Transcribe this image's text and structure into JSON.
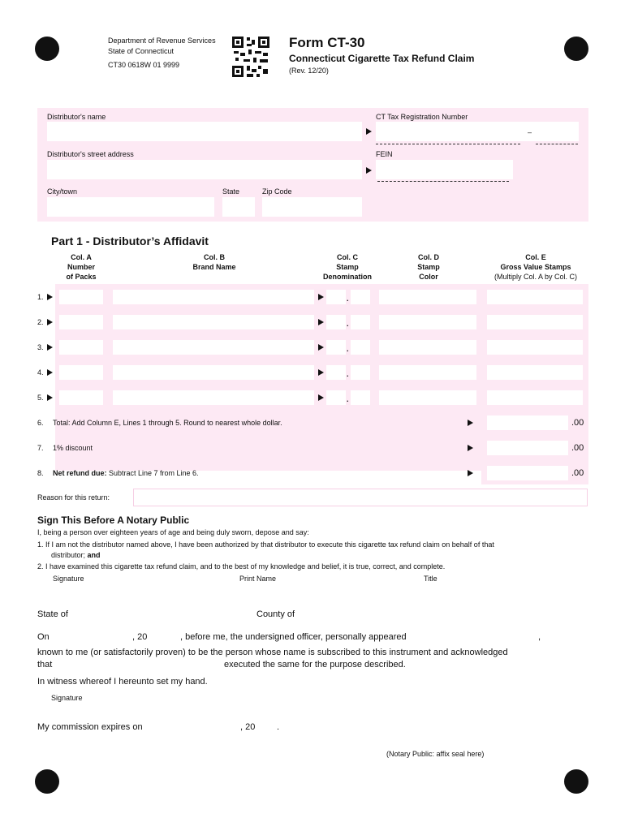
{
  "header": {
    "dept": "Department of Revenue Services",
    "state": "State of Connecticut",
    "code": "CT30 0618W 01 9999",
    "form_title": "Form CT-30",
    "subtitle": "Connecticut Cigarette Tax Refund Claim",
    "rev": "(Rev. 12/20)",
    "qr_icon": "qr-code"
  },
  "info": {
    "name_label": "Distributor's name",
    "ct_reg_label": "CT Tax Registration Number",
    "ct_dash": "–",
    "address_label": "Distributor's street address",
    "fein_label": "FEIN",
    "city_label": "City/town",
    "state_label": "State",
    "zip_label": "Zip Code"
  },
  "part1": {
    "title": "Part 1 - Distributor’s Affidavit",
    "columns": [
      {
        "l1": "Col. A",
        "l2": "Number",
        "l3": "of Packs"
      },
      {
        "l1": "Col. B",
        "l2": "Brand Name",
        "l3": ""
      },
      {
        "l1": "Col. C",
        "l2": "Stamp",
        "l3": "Denomination"
      },
      {
        "l1": "Col. D",
        "l2": "Stamp",
        "l3": "Color"
      },
      {
        "l1": "Col. E",
        "l2": "Gross Value Stamps",
        "l3": "(Multiply Col. A by Col. C)"
      }
    ],
    "rows": [
      "1.",
      "2.",
      "3.",
      "4.",
      "5."
    ],
    "decimal": ".",
    "totals": [
      {
        "num": "6.",
        "bold": "",
        "text": "Total: Add Column E, Lines 1 through 5. Round to nearest whole dollar.",
        "cents": ".00"
      },
      {
        "num": "7.",
        "bold": "",
        "text": "1% discount",
        "cents": ".00"
      },
      {
        "num": "8.",
        "bold": "Net refund due:",
        "text": " Subtract Line 7 from Line 6.",
        "cents": ".00"
      }
    ],
    "reason_label": "Reason for this return:"
  },
  "sign": {
    "title": "Sign This Before A Notary Public",
    "intro": "I, being a person over eighteen years of age and being duly sworn, depose and say:",
    "item1a": "1.  If I am not the distributor named above, I have been authorized by that distributor to execute this cigarette tax refund claim on behalf of that",
    "item1b": "distributor;",
    "item1c": " and",
    "item2": "2.  I have examined this cigarette tax refund claim, and to the best of my knowledge and belief, it is true, correct, and complete.",
    "signature": "Signature",
    "print_name": "Print Name",
    "title_label": "Title"
  },
  "notary": {
    "state_of": "State of",
    "county_of": "County of",
    "on": "On",
    "twenty": ", 20",
    "before_me": ", before me, the undersigned officer, personally appeared",
    "comma": ",",
    "known": "known to me (or satisfactorily proven) to be the person whose name is subscribed to this instrument and acknowledged",
    "that": "that",
    "executed": "executed the same for the purpose described.",
    "witness": "In witness whereof I hereunto set my hand.",
    "signature": "Signature",
    "commission": "My commission expires on",
    "twenty2": ", 20",
    "period": ".",
    "seal": "(Notary Public: affix seal here)"
  }
}
